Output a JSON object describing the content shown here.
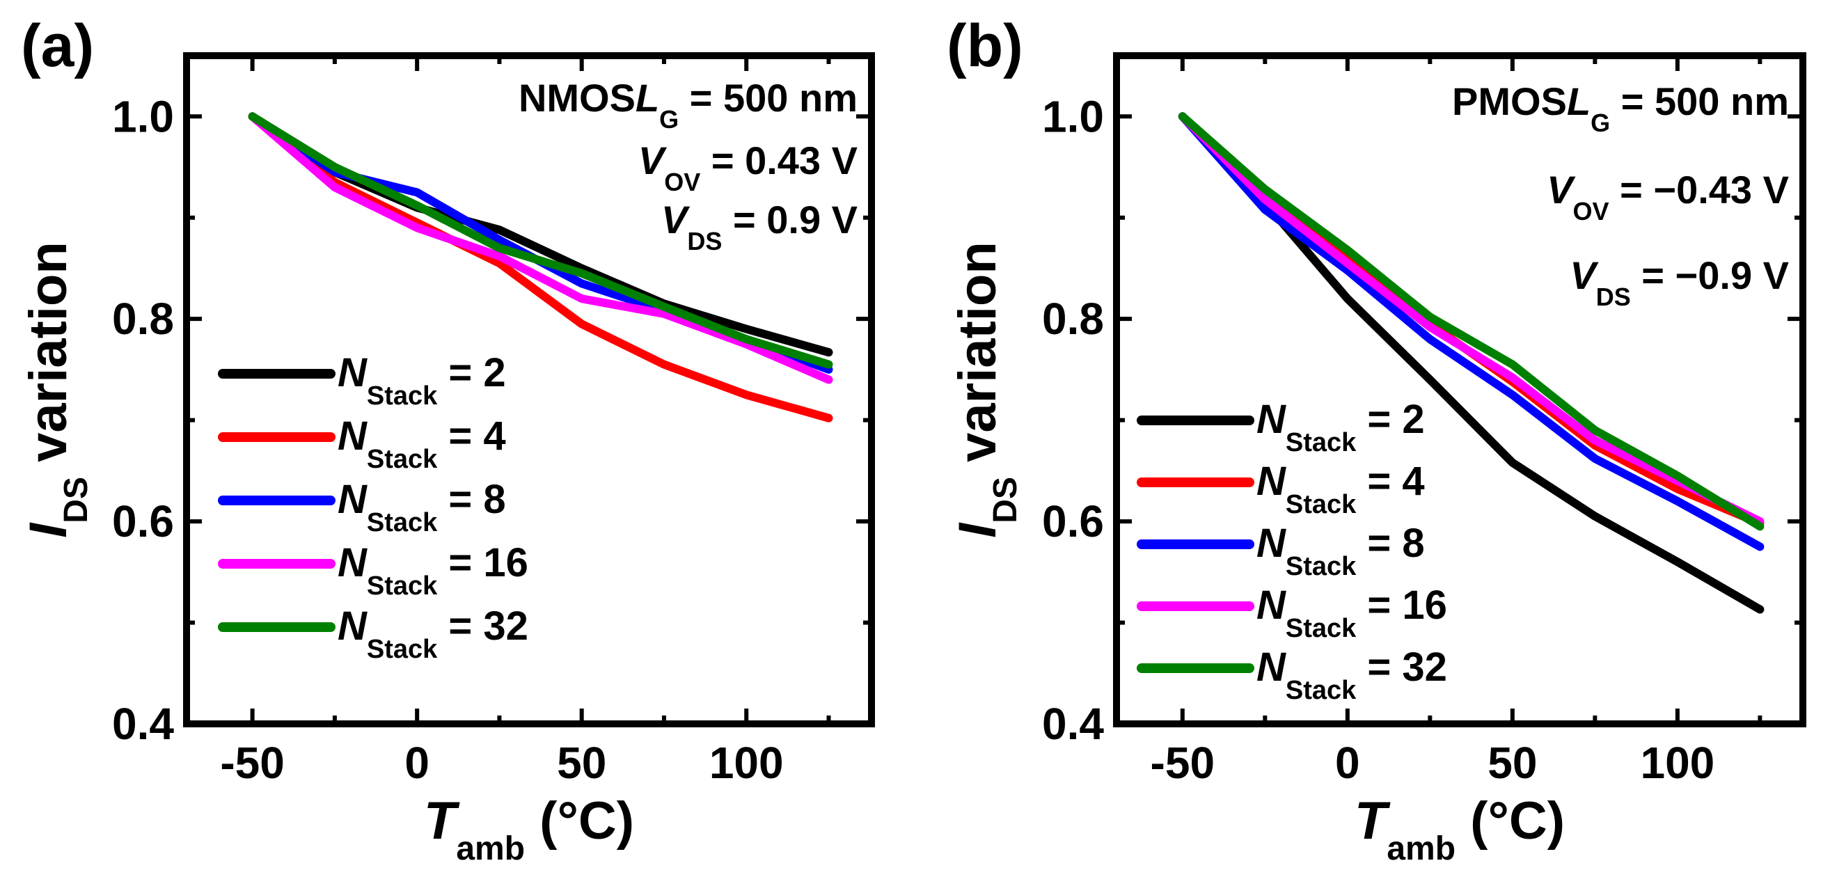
{
  "chart_data": [
    {
      "type": "line",
      "panel_label": "(a)",
      "device": "NMOS",
      "annotations": [
        {
          "italic": "L",
          "sub": "G",
          "rest": "= 500 nm"
        },
        {
          "italic": "V",
          "sub": "OV",
          "rest": "= 0.43 V"
        },
        {
          "italic": "V",
          "sub": "DS",
          "rest": "= 0.9 V"
        }
      ],
      "xlabel": {
        "italic": "T",
        "sub": "amb",
        "rest": "(°C)"
      },
      "ylabel": {
        "italic": "I",
        "sub": "DS",
        "rest": "variation"
      },
      "xlim": [
        -70,
        138
      ],
      "ylim": [
        0.4,
        1.06
      ],
      "xticks": [
        -50,
        0,
        50,
        100
      ],
      "xtick_labels": [
        "-50",
        "0",
        "50",
        "100"
      ],
      "yticks": [
        0.4,
        0.6,
        0.8,
        1.0
      ],
      "ytick_labels": [
        "0.4",
        "0.6",
        "0.8",
        "1.0"
      ],
      "legend_position": "bottom-left",
      "x": [
        -50,
        -25,
        0,
        25,
        50,
        75,
        100,
        125
      ],
      "series": [
        {
          "name": "NStack = 2",
          "legend": {
            "italic": "N",
            "sub": "Stack",
            "rest": "= 2"
          },
          "color": "#000000",
          "values": [
            1.0,
            0.945,
            0.91,
            0.888,
            0.85,
            0.815,
            0.79,
            0.767
          ]
        },
        {
          "name": "NStack = 4",
          "legend": {
            "italic": "N",
            "sub": "Stack",
            "rest": "= 4"
          },
          "color": "#ff0000",
          "values": [
            1.0,
            0.935,
            0.895,
            0.855,
            0.795,
            0.755,
            0.725,
            0.702
          ]
        },
        {
          "name": "NStack = 8",
          "legend": {
            "italic": "N",
            "sub": "Stack",
            "rest": "= 8"
          },
          "color": "#0000ff",
          "values": [
            1.0,
            0.945,
            0.925,
            0.878,
            0.835,
            0.808,
            0.78,
            0.75
          ]
        },
        {
          "name": "NStack = 16",
          "legend": {
            "italic": "N",
            "sub": "Stack",
            "rest": "= 16"
          },
          "color": "#ff00ff",
          "values": [
            1.0,
            0.93,
            0.89,
            0.862,
            0.82,
            0.805,
            0.775,
            0.74
          ]
        },
        {
          "name": "NStack = 32",
          "legend": {
            "italic": "N",
            "sub": "Stack",
            "rest": "= 32"
          },
          "color": "#008000",
          "values": [
            1.0,
            0.95,
            0.912,
            0.87,
            0.845,
            0.812,
            0.78,
            0.755
          ]
        }
      ]
    },
    {
      "type": "line",
      "panel_label": "(b)",
      "device": "PMOS",
      "annotations": [
        {
          "italic": "L",
          "sub": "G",
          "rest": "= 500 nm"
        },
        {
          "italic": "V",
          "sub": "OV",
          "rest": "= −0.43 V"
        },
        {
          "italic": "V",
          "sub": "DS",
          "rest": "= −0.9 V"
        }
      ],
      "xlabel": {
        "italic": "T",
        "sub": "amb",
        "rest": "(°C)"
      },
      "ylabel": {
        "italic": "I",
        "sub": "DS",
        "rest": "variation"
      },
      "xlim": [
        -70,
        138
      ],
      "ylim": [
        0.4,
        1.06
      ],
      "xticks": [
        -50,
        0,
        50,
        100
      ],
      "xtick_labels": [
        "-50",
        "0",
        "50",
        "100"
      ],
      "yticks": [
        0.4,
        0.6,
        0.8,
        1.0
      ],
      "ytick_labels": [
        "0.4",
        "0.6",
        "0.8",
        "1.0"
      ],
      "legend_position": "bottom-left",
      "x": [
        -50,
        -25,
        0,
        25,
        50,
        75,
        100,
        125
      ],
      "series": [
        {
          "name": "NStack = 2",
          "legend": {
            "italic": "N",
            "sub": "Stack",
            "rest": "= 2"
          },
          "color": "#000000",
          "values": [
            1.0,
            0.915,
            0.82,
            0.74,
            0.658,
            0.605,
            0.56,
            0.513
          ]
        },
        {
          "name": "NStack = 4",
          "legend": {
            "italic": "N",
            "sub": "Stack",
            "rest": "= 4"
          },
          "color": "#ff0000",
          "values": [
            1.0,
            0.918,
            0.858,
            0.795,
            0.738,
            0.675,
            0.632,
            0.598
          ]
        },
        {
          "name": "NStack = 8",
          "legend": {
            "italic": "N",
            "sub": "Stack",
            "rest": "= 8"
          },
          "color": "#0000ff",
          "values": [
            1.0,
            0.908,
            0.848,
            0.78,
            0.725,
            0.662,
            0.62,
            0.575
          ]
        },
        {
          "name": "NStack = 16",
          "legend": {
            "italic": "N",
            "sub": "Stack",
            "rest": "= 16"
          },
          "color": "#ff00ff",
          "values": [
            1.0,
            0.918,
            0.855,
            0.792,
            0.742,
            0.68,
            0.64,
            0.6
          ]
        },
        {
          "name": "NStack = 32",
          "legend": {
            "italic": "N",
            "sub": "Stack",
            "rest": "= 32"
          },
          "color": "#008000",
          "values": [
            1.0,
            0.928,
            0.868,
            0.802,
            0.755,
            0.69,
            0.645,
            0.595
          ]
        }
      ]
    }
  ]
}
